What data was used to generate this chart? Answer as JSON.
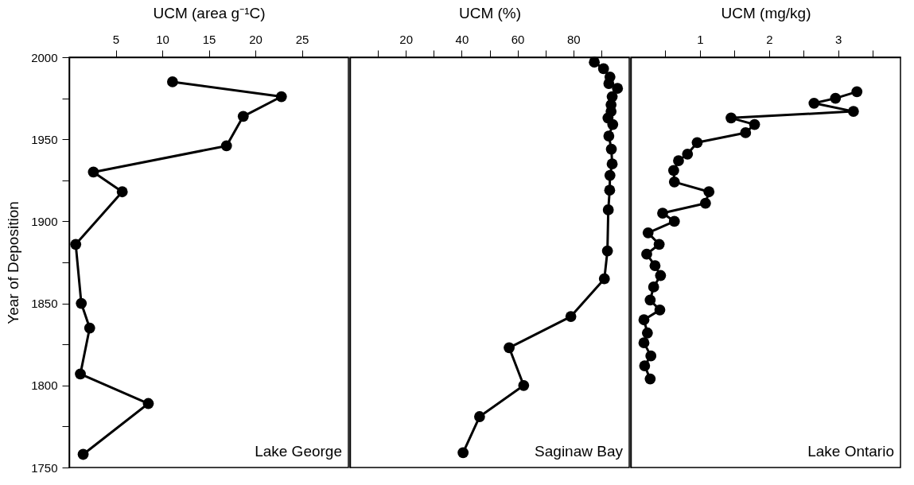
{
  "chart_data": [
    {
      "type": "line",
      "xlabel": "UCM (area g⁻¹C)",
      "ylabel": "Year of Deposition",
      "color": "#000000",
      "marker": "circle",
      "line_style": "solid",
      "grid": false,
      "x": [
        11.1,
        22.8,
        18.7,
        16.9,
        2.6,
        5.7,
        0.7,
        1.3,
        2.2,
        1.2,
        8.5,
        1.5
      ],
      "values": [
        1985,
        1976,
        1964,
        1946,
        1930,
        1918,
        1886,
        1850,
        1835,
        1807,
        1789,
        1758
      ],
      "xlim": [
        0,
        30
      ],
      "xticks": [
        5,
        10,
        15,
        20,
        25
      ],
      "ylim": [
        1750,
        2000
      ],
      "yticks": [
        1750,
        {
          "value": 1775,
          "label": null
        },
        1800,
        {
          "value": 1825,
          "label": null
        },
        1850,
        {
          "value": 1875,
          "label": null
        },
        1900,
        {
          "value": 1925,
          "label": null
        },
        1950,
        {
          "value": 1975,
          "label": null
        },
        2000
      ],
      "annotations": [
        "Lake George"
      ]
    },
    {
      "type": "line",
      "xlabel": "UCM (%)",
      "color": "#000000",
      "marker": "circle",
      "line_style": "solid",
      "grid": false,
      "tick_labels": "x",
      "x": [
        87.5,
        90.8,
        93.1,
        92.7,
        95.8,
        93.9,
        93.5,
        93.5,
        92.4,
        94.1,
        92.7,
        93.6,
        93.9,
        93.1,
        93.0,
        92.5,
        92.2,
        91.1,
        79.1,
        57.0,
        62.2,
        46.4,
        40.5
      ],
      "values": [
        1997,
        1993,
        1988,
        1984,
        1981,
        1976,
        1971,
        1967,
        1963,
        1959,
        1952,
        1944,
        1935,
        1928,
        1919,
        1907,
        1882,
        1865,
        1842,
        1823,
        1800,
        1781,
        1759
      ],
      "xlim": [
        0,
        100
      ],
      "xticks": [
        {
          "value": 10,
          "label": null
        },
        20,
        {
          "value": 30,
          "label": null
        },
        40,
        {
          "value": 50,
          "label": null
        },
        60,
        {
          "value": 70,
          "label": null
        },
        80,
        {
          "value": 90,
          "label": null
        }
      ],
      "ylim": [
        1750,
        2000
      ],
      "annotations": [
        "Saginaw Bay"
      ]
    },
    {
      "type": "line",
      "xlabel": "UCM (mg/kg)",
      "color": "#000000",
      "marker": "circle",
      "line_style": "solid",
      "grid": false,
      "tick_labels": "x",
      "x": [
        3.27,
        2.96,
        2.65,
        3.22,
        1.45,
        1.79,
        1.66,
        0.96,
        0.82,
        0.69,
        0.62,
        0.63,
        1.13,
        1.08,
        0.46,
        0.63,
        0.25,
        0.41,
        0.23,
        0.35,
        0.43,
        0.33,
        0.28,
        0.42,
        0.19,
        0.24,
        0.19,
        0.29,
        0.2,
        0.28
      ],
      "values": [
        1979,
        1975,
        1972,
        1967,
        1963,
        1959,
        1954,
        1948,
        1941,
        1937,
        1931,
        1924,
        1918,
        1911,
        1905,
        1900,
        1893,
        1886,
        1880,
        1873,
        1867,
        1860,
        1852,
        1846,
        1840,
        1832,
        1826,
        1818,
        1812,
        1804
      ],
      "xlim": [
        0,
        3.9
      ],
      "xticks": [
        {
          "value": 0.5,
          "label": null
        },
        1,
        {
          "value": 1.5,
          "label": null
        },
        2,
        {
          "value": 2.5,
          "label": null
        },
        3,
        {
          "value": 3.5,
          "label": null
        }
      ],
      "ylim": [
        1750,
        2000
      ],
      "annotations": [
        "Lake Ontario"
      ]
    }
  ]
}
